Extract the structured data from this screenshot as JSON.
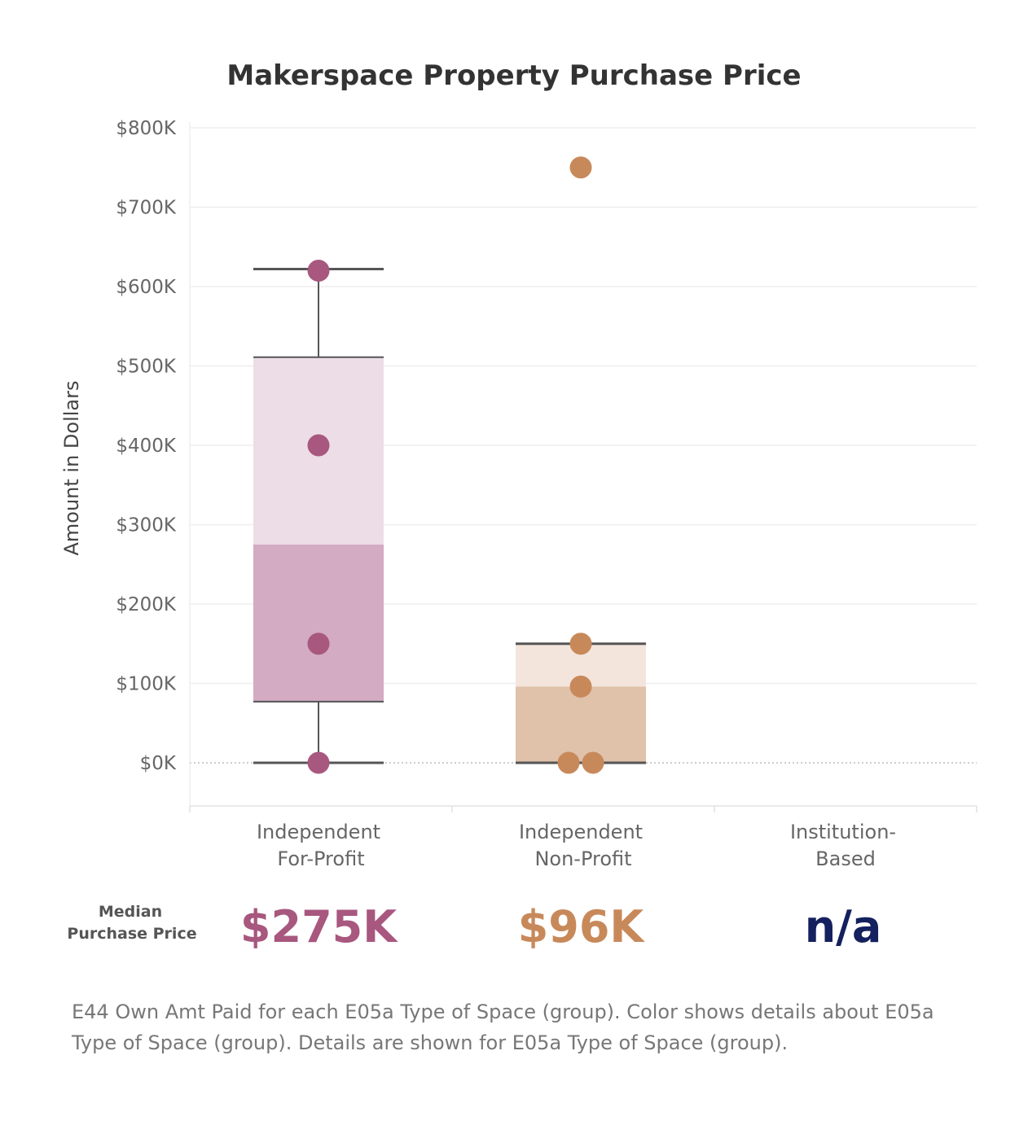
{
  "chart_data": {
    "type": "box",
    "title": "Makerspace Property Purchase Price",
    "ylabel": "Amount in Dollars",
    "ylim": [
      -55000,
      810000
    ],
    "yticks": [
      0,
      100000,
      200000,
      300000,
      400000,
      500000,
      600000,
      700000,
      800000
    ],
    "ytick_labels": [
      "$0K",
      "$100K",
      "$200K",
      "$300K",
      "$400K",
      "$500K",
      "$600K",
      "$700K",
      "$800K"
    ],
    "categories": [
      {
        "key": "for_profit",
        "line1": "Independent",
        "line2": "For-Profit"
      },
      {
        "key": "non_profit",
        "line1": "Independent",
        "line2": "Non-Profit"
      },
      {
        "key": "institution",
        "line1": "Institution-",
        "line2": "Based"
      }
    ],
    "series": [
      {
        "category": "for_profit",
        "color": "#a8577f",
        "box": {
          "whisker_low": 0,
          "q1": 77000,
          "median": 275000,
          "q3": 511000,
          "whisker_high": 622000
        },
        "points": [
          {
            "y": 620000,
            "dx": 0
          },
          {
            "y": 400000,
            "dx": 0
          },
          {
            "y": 150000,
            "dx": 0
          },
          {
            "y": 0,
            "dx": 0
          }
        ]
      },
      {
        "category": "non_profit",
        "color": "#c8895a",
        "box": {
          "whisker_low": 0,
          "q1": 0,
          "median": 96000,
          "q3": 150000,
          "whisker_high": 150000
        },
        "points": [
          {
            "y": 750000,
            "dx": 0
          },
          {
            "y": 150000,
            "dx": 0
          },
          {
            "y": 96000,
            "dx": 0
          },
          {
            "y": 0,
            "dx": -15
          },
          {
            "y": 0,
            "dx": 15
          }
        ]
      }
    ],
    "median_label": [
      "Median",
      "Purchase Price"
    ],
    "median_values": [
      {
        "text": "$275K",
        "color": "#a8577f"
      },
      {
        "text": "$96K",
        "color": "#c8895a"
      },
      {
        "text": "n/a",
        "color": "#14215e"
      }
    ],
    "caption": "E44 Own Amt Paid for each E05a Type of Space (group).  Color shows details about E05a Type of Space (group).  Details are shown for E05a Type of Space (group).",
    "colors": {
      "for_profit_light": "#eddde6",
      "for_profit_dark": "#d3abc3",
      "non_profit_light": "#f4e5dc",
      "non_profit_dark": "#e0c1aa",
      "whisker": "#555555",
      "grid": "#eeeeee"
    }
  }
}
